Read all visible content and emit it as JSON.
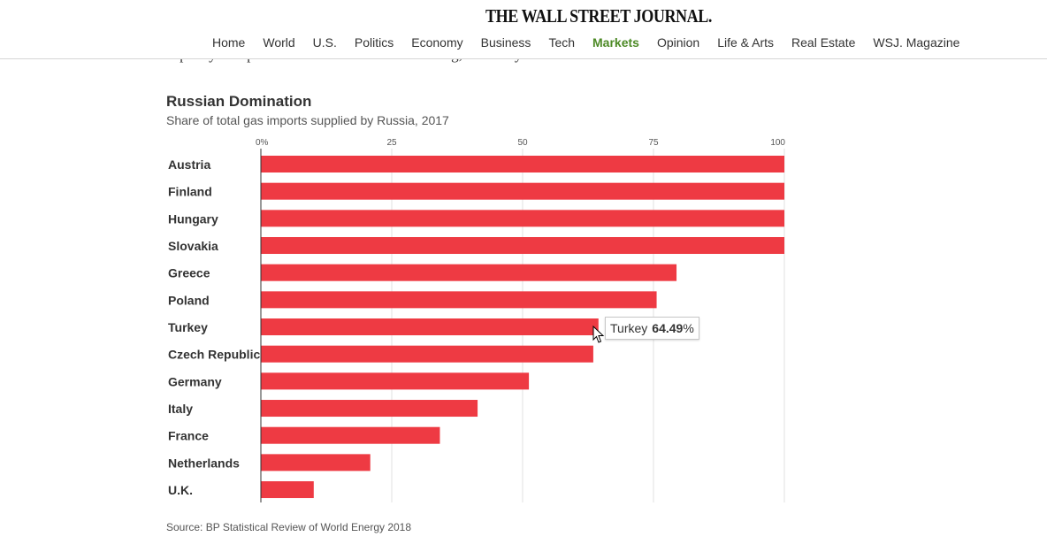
{
  "header": {
    "logo": "THE WALL STREET JOURNAL.",
    "nav": [
      {
        "label": "Home",
        "active": false
      },
      {
        "label": "World",
        "active": false
      },
      {
        "label": "U.S.",
        "active": false
      },
      {
        "label": "Politics",
        "active": false
      },
      {
        "label": "Economy",
        "active": false
      },
      {
        "label": "Business",
        "active": false
      },
      {
        "label": "Tech",
        "active": false
      },
      {
        "label": "Markets",
        "active": true
      },
      {
        "label": "Opinion",
        "active": false
      },
      {
        "label": "Life & Arts",
        "active": false
      },
      {
        "label": "Real Estate",
        "active": false
      },
      {
        "label": "WSJ. Magazine",
        "active": false
      }
    ]
  },
  "article": {
    "partial_text": "capacity of a planned LNG terminal in Hamburg, Germany."
  },
  "colors": {
    "bar": "#ee3a43",
    "active_nav": "#4d8a26"
  },
  "chart_data": {
    "type": "bar",
    "orientation": "horizontal",
    "title": "Russian Domination",
    "subtitle": "Share of total gas imports supplied by Russia, 2017",
    "xlim": [
      0,
      100
    ],
    "ticks": [
      "0%",
      "25",
      "50",
      "75",
      "100"
    ],
    "tick_values": [
      0,
      25,
      50,
      75,
      100
    ],
    "categories": [
      "Austria",
      "Finland",
      "Hungary",
      "Slovakia",
      "Greece",
      "Poland",
      "Turkey",
      "Czech Republic",
      "Germany",
      "Italy",
      "France",
      "Netherlands",
      "U.K."
    ],
    "values": [
      100,
      100,
      100,
      100,
      79.4,
      75.6,
      64.49,
      63.5,
      51.2,
      41.4,
      34.2,
      20.9,
      10.1
    ],
    "source": "Source: BP Statistical Review of World Energy 2018",
    "tooltip": {
      "category": "Turkey",
      "value": "64.49",
      "unit": "%"
    }
  }
}
